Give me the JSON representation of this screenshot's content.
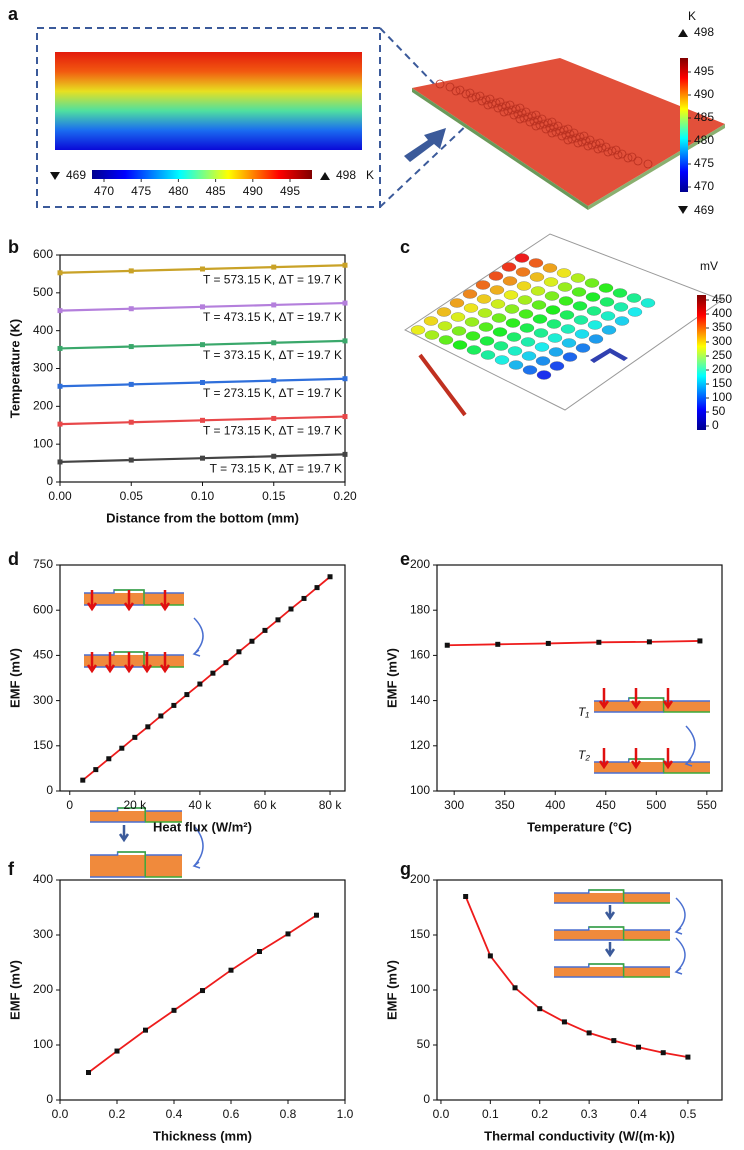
{
  "panel_labels": [
    "a",
    "b",
    "c",
    "d",
    "e",
    "f",
    "g"
  ],
  "panel_a": {
    "inset_min": 469,
    "inset_max": 498,
    "inset_unit": "K",
    "inset_ticks": [
      470,
      475,
      480,
      485,
      490,
      495
    ],
    "unit": "K",
    "max": 498,
    "min": 469,
    "ticks": [
      470,
      475,
      480,
      485,
      490,
      495
    ]
  },
  "panel_c": {
    "unit": "mV",
    "ticks": [
      0,
      50,
      100,
      150,
      200,
      250,
      300,
      350,
      400,
      450
    ]
  },
  "insets": {
    "e_labels": [
      "T₁",
      "T₂"
    ]
  },
  "chart_data": [
    {
      "type": "line",
      "xlabel": "Distance from the bottom (mm)",
      "ylabel": "Temperature (K)",
      "x": [
        0,
        0.05,
        0.1,
        0.15,
        0.2
      ],
      "xlim": [
        0,
        0.2
      ],
      "ylim": [
        0,
        600
      ],
      "xticks": [
        {
          "value": 0,
          "label": "0.00"
        },
        {
          "value": 0.05,
          "label": "0.05"
        },
        {
          "value": 0.1,
          "label": "0.10"
        },
        {
          "value": 0.15,
          "label": "0.15"
        },
        {
          "value": 0.2,
          "label": "0.20"
        }
      ],
      "yticks": [
        0,
        100,
        200,
        300,
        400,
        500,
        600
      ],
      "series": [
        {
          "color": "#c9a227",
          "values": [
            553,
            558,
            563,
            568,
            573
          ],
          "annotation": "T = 573.15 K, ΔT = 19.7 K"
        },
        {
          "color": "#b47fdc",
          "values": [
            453,
            458,
            463,
            468,
            473
          ],
          "annotation": "T = 473.15 K, ΔT = 19.7 K"
        },
        {
          "color": "#3aa86b",
          "values": [
            353,
            358,
            363,
            368,
            373
          ],
          "annotation": "T = 373.15 K, ΔT = 19.7 K"
        },
        {
          "color": "#2f6fdb",
          "values": [
            253,
            258,
            263,
            268,
            273
          ],
          "annotation": "T = 273.15 K, ΔT = 19.7 K"
        },
        {
          "color": "#e8484a",
          "values": [
            153,
            158,
            163,
            168,
            173
          ],
          "annotation": "T = 173.15 K, ΔT = 19.7 K"
        },
        {
          "color": "#444444",
          "values": [
            53,
            58,
            63,
            68,
            73
          ],
          "annotation": "T = 73.15 K, ΔT = 19.7 K"
        }
      ]
    },
    {
      "type": "line",
      "xlabel": "Heat flux (W/m²)",
      "ylabel": "EMF (mV)",
      "x": [
        4000,
        8000,
        12000,
        16000,
        20000,
        24000,
        28000,
        32000,
        36000,
        40000,
        44000,
        48000,
        52000,
        56000,
        60000,
        64000,
        68000,
        72000,
        76000,
        80000
      ],
      "xlim": [
        -3000,
        84600
      ],
      "ylim": [
        0,
        750
      ],
      "xticks": [
        0,
        {
          "value": 20000,
          "label": "20 k"
        },
        {
          "value": 40000,
          "label": "40 k"
        },
        {
          "value": 60000,
          "label": "60 k"
        },
        {
          "value": 80000,
          "label": "80 k"
        }
      ],
      "yticks": [
        0,
        150,
        300,
        450,
        600,
        750
      ],
      "series": [
        {
          "color": "#ee1c1c",
          "values": [
            36,
            71,
            107,
            142,
            178,
            213,
            249,
            284,
            320,
            355,
            391,
            426,
            462,
            497,
            533,
            568,
            604,
            639,
            675,
            711
          ]
        }
      ]
    },
    {
      "type": "line",
      "xlabel": "Temperature (°C)",
      "ylabel": "EMF (mV)",
      "x": [
        293.15,
        343.15,
        393.15,
        443.15,
        493.15,
        543.15
      ],
      "xlim": [
        283,
        565
      ],
      "ylim": [
        100,
        200
      ],
      "xticks": [
        300,
        350,
        400,
        450,
        500,
        550
      ],
      "yticks": [
        100,
        120,
        140,
        160,
        180,
        200
      ],
      "series": [
        {
          "color": "#ee1c1c",
          "values": [
            164.5,
            164.9,
            165.3,
            165.8,
            166.0,
            166.4
          ]
        }
      ]
    },
    {
      "type": "line",
      "xlabel": "Thickness (mm)",
      "ylabel": "EMF (mV)",
      "x": [
        0.1,
        0.2,
        0.3,
        0.4,
        0.5,
        0.6,
        0.7,
        0.8,
        0.9
      ],
      "xlim": [
        0,
        1
      ],
      "ylim": [
        0,
        400
      ],
      "xticks": [
        {
          "value": 0,
          "label": "0.0"
        },
        0.2,
        0.4,
        0.6,
        0.8,
        {
          "value": 1,
          "label": "1.0"
        }
      ],
      "yticks": [
        0,
        100,
        200,
        300,
        400
      ],
      "series": [
        {
          "color": "#ee1c1c",
          "values": [
            50,
            89,
            127,
            163,
            199,
            236,
            270,
            302,
            336
          ]
        }
      ]
    },
    {
      "type": "line",
      "xlabel": "Thermal conductivity (W/(m·k))",
      "ylabel": "EMF (mV)",
      "x": [
        0.05,
        0.1,
        0.15,
        0.2,
        0.25,
        0.3,
        0.35,
        0.4,
        0.45,
        0.5
      ],
      "xlim": [
        -0.008,
        0.569
      ],
      "ylim": [
        0,
        200
      ],
      "xticks": [
        {
          "value": 0,
          "label": "0.0"
        },
        0.1,
        0.2,
        0.3,
        0.4,
        0.5
      ],
      "yticks": [
        0,
        50,
        100,
        150,
        200
      ],
      "series": [
        {
          "color": "#ee1c1c",
          "values": [
            185,
            131,
            102,
            83,
            71,
            61,
            54,
            48,
            43,
            39
          ]
        }
      ]
    }
  ]
}
